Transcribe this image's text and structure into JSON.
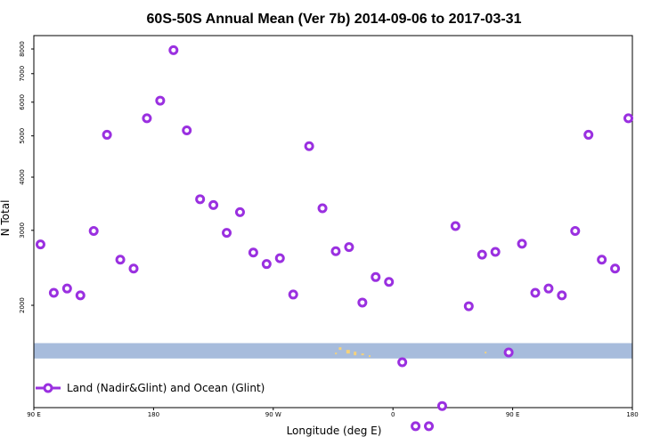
{
  "chart_data": {
    "type": "scatter",
    "title": "60S-50S Annual Mean (Ver 7b)   2014-09-06 to 2017-03-31",
    "xlabel": "Longitude (deg E)",
    "ylabel": "N Total",
    "x_ticks": [
      {
        "value": 90,
        "label": "90 E"
      },
      {
        "value": 180,
        "label": "180"
      },
      {
        "value": 270,
        "label": "90 W"
      },
      {
        "value": 360,
        "label": "0"
      },
      {
        "value": 450,
        "label": "90 E"
      },
      {
        "value": 540,
        "label": "180"
      }
    ],
    "xlim": [
      90,
      540
    ],
    "y_scale": "log",
    "ylim": [
      1150,
      8600
    ],
    "y_ticks": [
      2000,
      3000,
      4000,
      5000,
      6000,
      7000,
      8000
    ],
    "legend_placement": "bottom-left",
    "grid": false,
    "band": {
      "color": "#a7bcdc",
      "y_range": [
        1500,
        1630
      ]
    },
    "land_color": "#f5d27a",
    "series": [
      {
        "name": "Land (Nadir&Glint) and Ocean (Glint)",
        "color": "#9a30e0",
        "marker": "open-circle",
        "x": [
          95,
          105,
          115,
          125,
          135,
          145,
          155,
          165,
          175,
          185,
          195,
          205,
          215,
          225,
          235,
          245,
          255,
          265,
          275,
          285,
          297,
          307,
          317,
          327,
          337,
          347,
          357,
          367,
          377,
          387,
          397,
          407,
          417,
          427,
          437,
          447,
          457,
          467,
          477,
          487,
          497,
          507,
          517,
          527,
          537
        ],
        "y": [
          2780,
          2140,
          2190,
          2110,
          2990,
          5030,
          2560,
          2440,
          5500,
          6050,
          7950,
          5150,
          3550,
          3440,
          2960,
          3310,
          2660,
          2500,
          2580,
          2120,
          4730,
          3380,
          2680,
          2740,
          2030,
          2330,
          2270,
          1470,
          1040,
          1040,
          1160,
          3070,
          1990,
          2630,
          2670,
          1550,
          2790,
          2140,
          2190,
          2110,
          2990,
          5030,
          2560,
          2440,
          5500
        ]
      }
    ]
  }
}
